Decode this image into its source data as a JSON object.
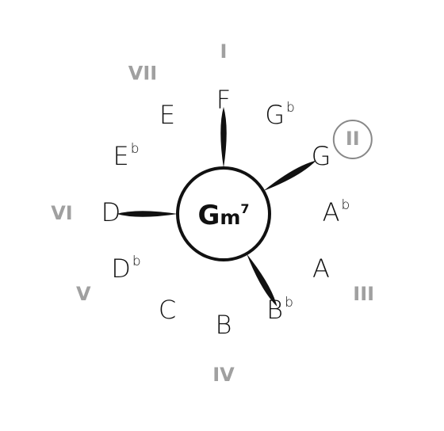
{
  "chord": {
    "root": "G",
    "quality": "m",
    "extension": "7"
  },
  "notes": [
    {
      "name": "F",
      "accidental": "",
      "chord_tone": true
    },
    {
      "name": "G",
      "accidental": "b",
      "chord_tone": false
    },
    {
      "name": "G",
      "accidental": "",
      "chord_tone": true
    },
    {
      "name": "A",
      "accidental": "b",
      "chord_tone": false
    },
    {
      "name": "A",
      "accidental": "",
      "chord_tone": false
    },
    {
      "name": "B",
      "accidental": "b",
      "chord_tone": true
    },
    {
      "name": "B",
      "accidental": "",
      "chord_tone": false
    },
    {
      "name": "C",
      "accidental": "",
      "chord_tone": false
    },
    {
      "name": "D",
      "accidental": "b",
      "chord_tone": false
    },
    {
      "name": "D",
      "accidental": "",
      "chord_tone": true
    },
    {
      "name": "E",
      "accidental": "b",
      "chord_tone": false
    },
    {
      "name": "E",
      "accidental": "",
      "chord_tone": false
    }
  ],
  "degrees": [
    {
      "label": "I",
      "circled": false
    },
    {
      "label": "II",
      "circled": true
    },
    {
      "label": "III",
      "circled": false
    },
    {
      "label": "IV",
      "circled": false
    },
    {
      "label": "V",
      "circled": false
    },
    {
      "label": "VI",
      "circled": false
    },
    {
      "label": "VII",
      "circled": false
    }
  ],
  "colors": {
    "ink": "#111111",
    "degree": "#a0a0a0",
    "circle_outline": "#888888",
    "background": "#ffffff"
  }
}
